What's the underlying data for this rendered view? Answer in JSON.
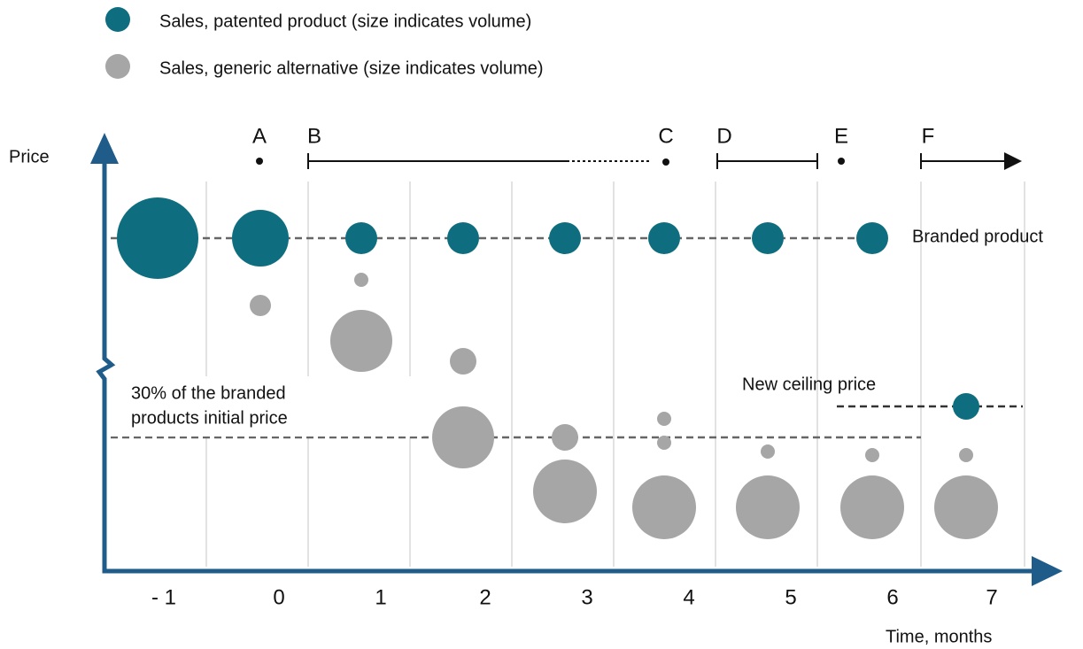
{
  "legend": {
    "items": [
      {
        "label": "Sales, patented product (size indicates volume)"
      },
      {
        "label": "Sales, generic alternative (size indicates volume)"
      }
    ]
  },
  "y_axis": {
    "label": "Price"
  },
  "x_axis": {
    "label": "Time, months",
    "ticks": [
      "- 1",
      "0",
      "1",
      "2",
      "3",
      "4",
      "5",
      "6",
      "7"
    ]
  },
  "phases": [
    "A",
    "B",
    "C",
    "D",
    "E",
    "F"
  ],
  "annotations": {
    "branded": "Branded product",
    "reference_line_1": "30% of the branded",
    "reference_line_2": "products initial price",
    "ceiling": "New ceiling price"
  }
}
